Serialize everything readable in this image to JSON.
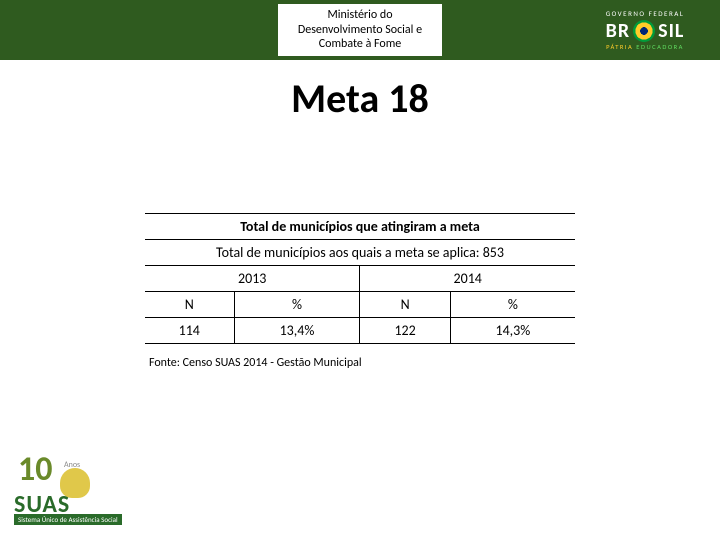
{
  "header": {
    "ministry_line1": "Ministério do",
    "ministry_line2": "Desenvolvimento Social e",
    "ministry_line3": "Combate à Fome",
    "gov_top": "GOVERNO FEDERAL",
    "brasil_left": "BR",
    "brasil_right": "SIL",
    "gov_patria": "PÁTRIA",
    "gov_educadora": " EDUCADORA",
    "header_bg": "#2f5b1f"
  },
  "title": "Meta 18",
  "table": {
    "row1": "Total de municípios que atingiram a meta",
    "row2": "Total de municípios aos quais a meta se aplica:  853",
    "year1": "2013",
    "year2": "2014",
    "h_n1": "N",
    "h_p1": "%",
    "h_n2": "N",
    "h_p2": "%",
    "v_n1": "114",
    "v_p1": "13,4%",
    "v_n2": "122",
    "v_p2": "14,3%"
  },
  "source": "Fonte: Censo SUAS 2014 - Gestão Municipal",
  "suas": {
    "ten": "10",
    "anos": "Anos",
    "main": "SUAS",
    "sub": "Sistema Único de Assistência Social"
  }
}
